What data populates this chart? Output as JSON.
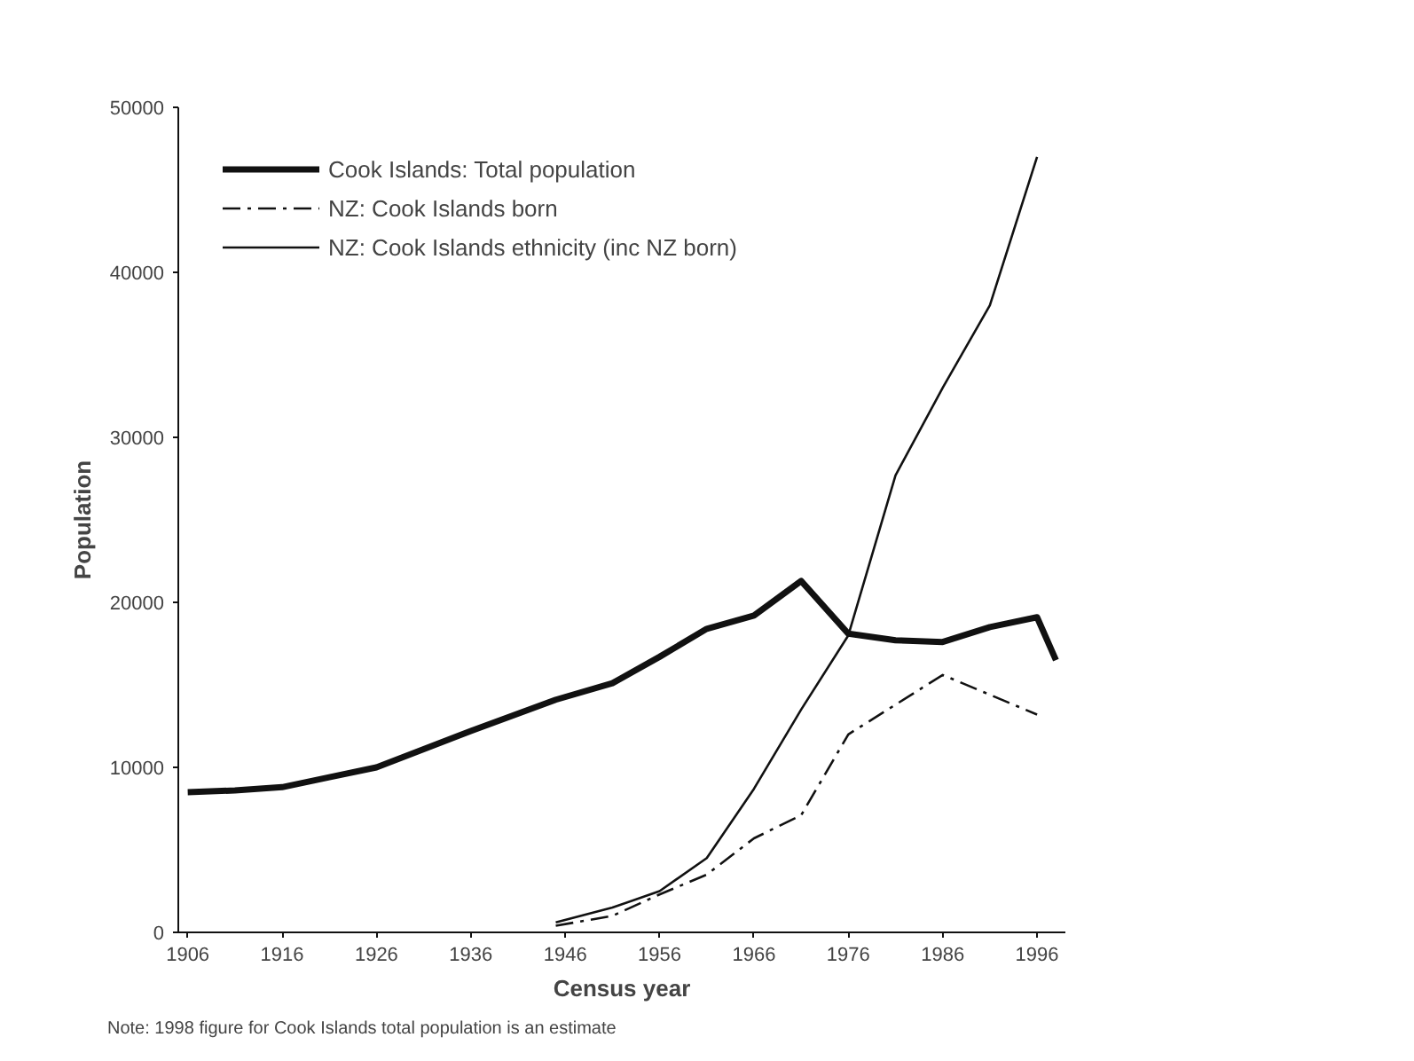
{
  "chart_data": {
    "type": "line",
    "xlabel": "Census year",
    "ylabel": "Population",
    "annotations": [
      "Note: 1998 figure for Cook Islands total population is an estimate"
    ],
    "xlim": [
      1905,
      1999
    ],
    "xticks": [
      1906,
      1916,
      1926,
      1936,
      1946,
      1956,
      1966,
      1976,
      1986,
      1996
    ],
    "ylim": [
      0,
      50000
    ],
    "yticks": [
      0,
      10000,
      20000,
      30000,
      40000,
      50000
    ],
    "grid": false,
    "legend": "top left",
    "marker": "none",
    "series": [
      {
        "name": "Cook Islands: Total population",
        "color": "#111111",
        "line_style": "solid",
        "x": [
          1906,
          1911,
          1916,
          1921,
          1926,
          1936,
          1945,
          1951,
          1956,
          1961,
          1966,
          1971,
          1976,
          1981,
          1986,
          1991,
          1996,
          1998
        ],
        "values": [
          8500,
          8600,
          8800,
          9400,
          10000,
          12200,
          14100,
          15100,
          16700,
          18400,
          19200,
          21300,
          18100,
          17700,
          17600,
          18500,
          19100,
          16500
        ]
      },
      {
        "name": "NZ: Cook Islands born",
        "color": "#111111",
        "line_style": "dashed",
        "x": [
          1945,
          1951,
          1956,
          1961,
          1966,
          1971,
          1976,
          1981,
          1986,
          1996
        ],
        "values": [
          400,
          1000,
          2300,
          3500,
          5700,
          7100,
          12000,
          13800,
          15600,
          13200
        ]
      },
      {
        "name": "NZ: Cook Islands ethnicity (inc NZ born)",
        "color": "#111111",
        "line_style": "solid",
        "x": [
          1945,
          1951,
          1956,
          1961,
          1966,
          1971,
          1976,
          1981,
          1986,
          1991,
          1996
        ],
        "values": [
          600,
          1500,
          2500,
          4500,
          8700,
          13500,
          18000,
          27700,
          33000,
          38000,
          47000
        ]
      }
    ]
  }
}
